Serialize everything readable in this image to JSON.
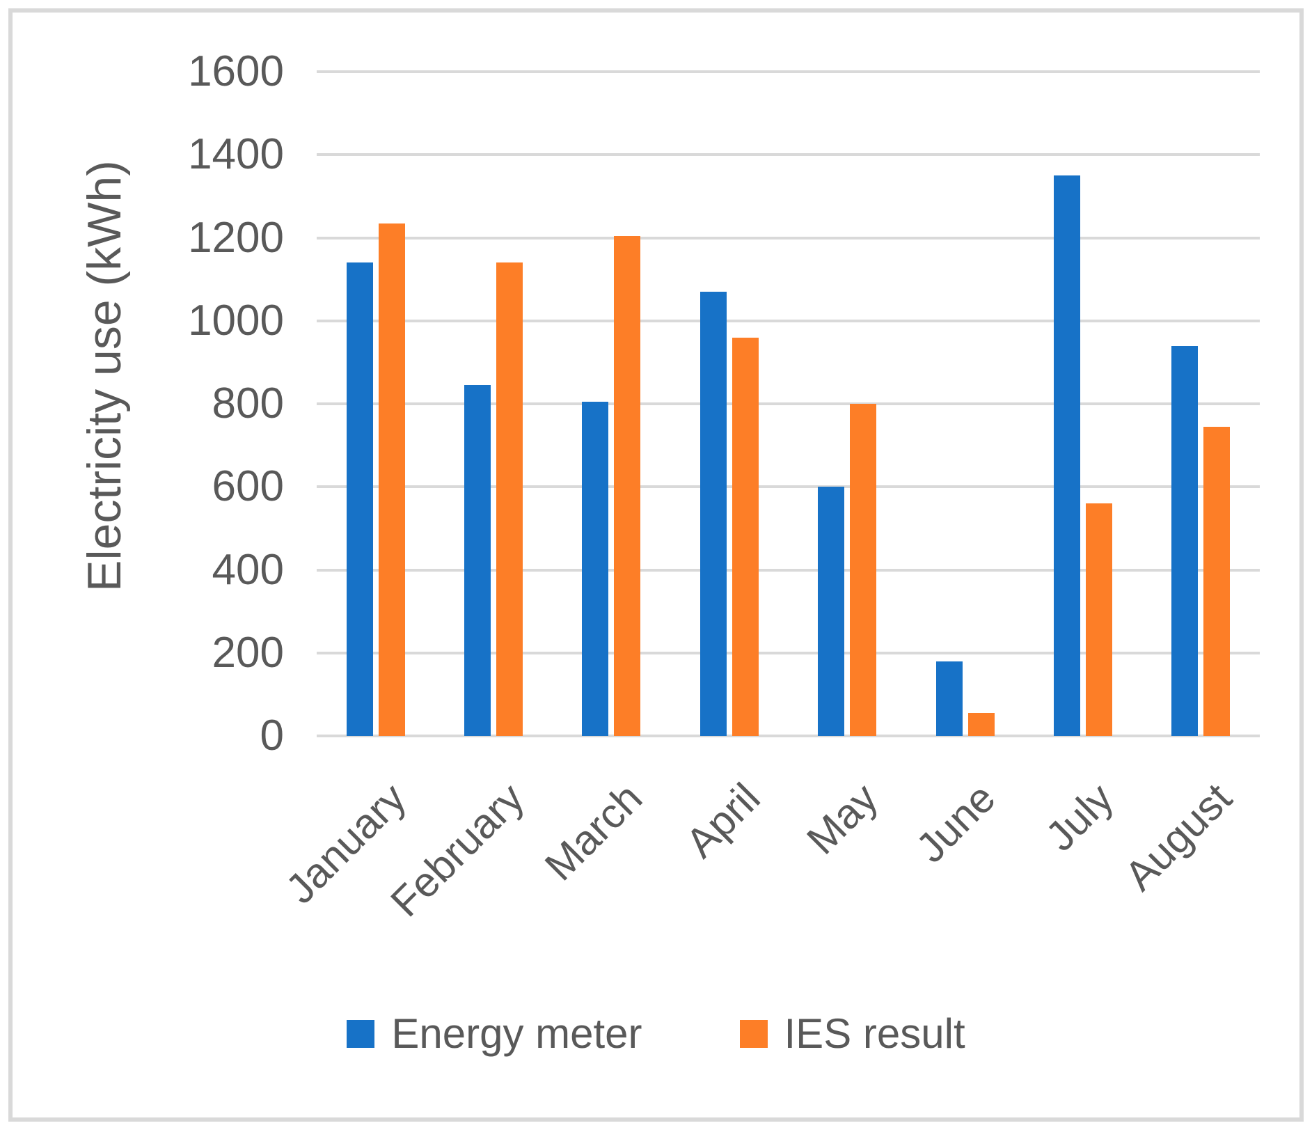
{
  "chart_data": {
    "type": "bar",
    "title": "",
    "xlabel": "",
    "ylabel": "Electricity use (kWh)",
    "categories": [
      "January",
      "February",
      "March",
      "April",
      "May",
      "June",
      "July",
      "August"
    ],
    "series": [
      {
        "name": "Energy meter",
        "color": "#1772C7",
        "values": [
          1140,
          845,
          805,
          1070,
          600,
          180,
          1350,
          940
        ]
      },
      {
        "name": "IES result",
        "color": "#FD7E27",
        "values": [
          1235,
          1140,
          1205,
          960,
          800,
          55,
          560,
          745
        ]
      }
    ],
    "y_ticks": [
      0,
      200,
      400,
      600,
      800,
      1000,
      1200,
      1400,
      1600
    ],
    "ylim": [
      0,
      1600
    ],
    "grid": "horizontal",
    "legend_position": "bottom",
    "x_label_rotation": -45
  },
  "styles": {
    "grid_color": "#D9D9D9",
    "border_color": "#D9D9D9",
    "text_color": "#595959",
    "background": "#FFFFFF"
  }
}
